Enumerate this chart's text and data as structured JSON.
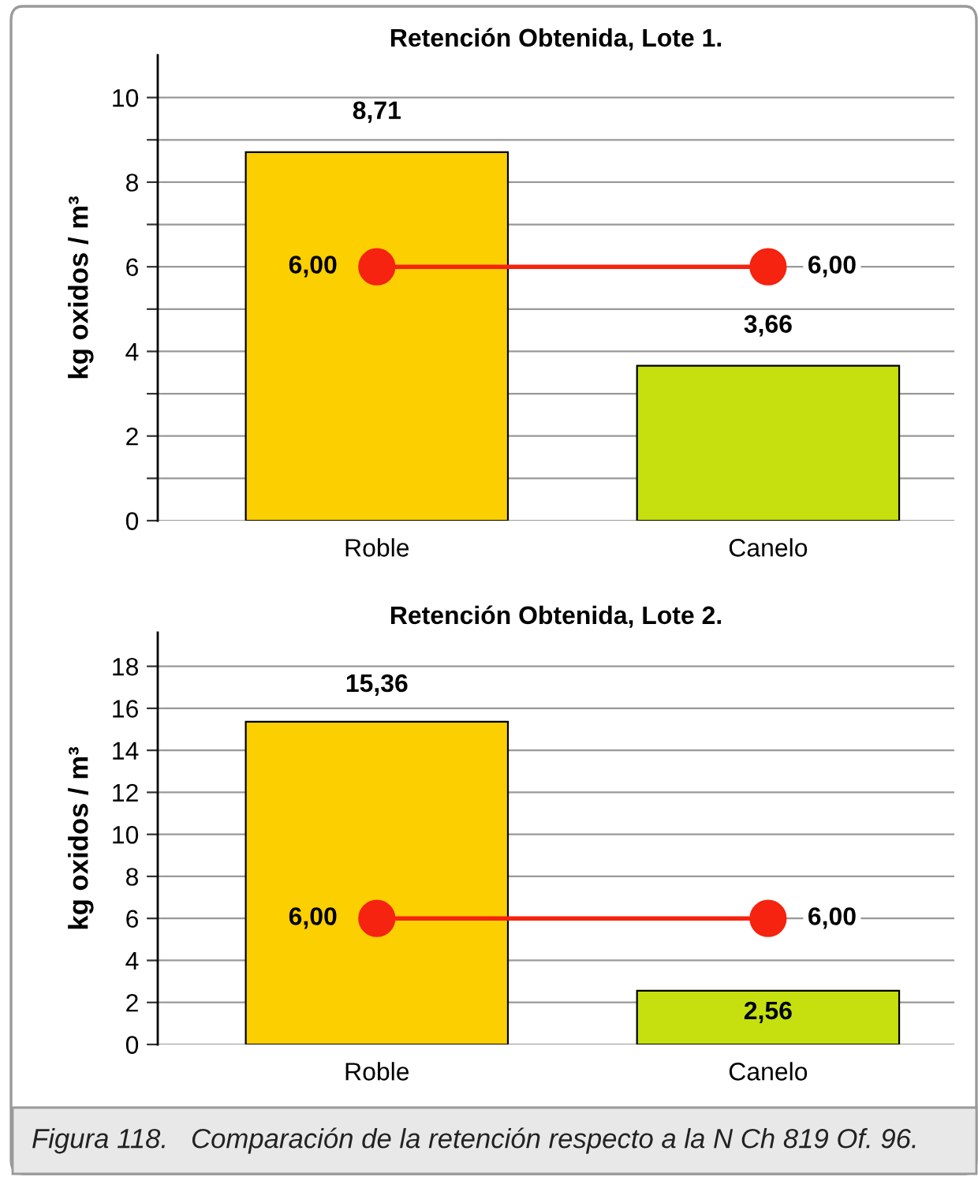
{
  "chart_data": [
    {
      "type": "bar",
      "title": "Retención Obtenida, Lote 1.",
      "ylabel": "kg oxidos / m³",
      "categories": [
        "Roble",
        "Canelo"
      ],
      "series": [
        {
          "colors": [
            "#fccf00",
            "#c5e00e"
          ],
          "values": [
            8.71,
            3.66
          ],
          "value_labels": [
            "8,71",
            "3,66"
          ]
        },
        {
          "type": "line",
          "color": "#f5230f",
          "values": [
            6.0,
            6.0
          ],
          "value_labels": [
            "6,00",
            "6,00"
          ],
          "marker": "circle"
        }
      ],
      "ylim": [
        0,
        11
      ],
      "yticks": [
        0,
        {
          "value": 1,
          "label": null
        },
        2,
        {
          "value": 3,
          "label": null
        },
        4,
        {
          "value": 5,
          "label": null
        },
        6,
        {
          "value": 7,
          "label": null
        },
        8,
        {
          "value": 9,
          "label": null
        },
        10
      ],
      "grid": "y",
      "legend": false
    },
    {
      "type": "bar",
      "title": "Retención Obtenida, Lote 2.",
      "ylabel": "kg oxidos / m³",
      "categories": [
        "Roble",
        "Canelo"
      ],
      "series": [
        {
          "colors": [
            "#fccf00",
            "#c5e00e"
          ],
          "values": [
            15.36,
            2.56
          ],
          "value_labels": [
            "15,36",
            "2,56"
          ]
        },
        {
          "type": "line",
          "color": "#f5230f",
          "values": [
            6.0,
            6.0
          ],
          "value_labels": [
            "6,00",
            "6,00"
          ],
          "marker": "circle"
        }
      ],
      "ylim": [
        0,
        19.6
      ],
      "yticks": [
        0,
        2,
        4,
        6,
        8,
        10,
        12,
        14,
        16,
        18
      ],
      "grid": "y",
      "legend": false,
      "annotations": [
        "Figura 118.   Comparación de la retención respecto a la N Ch 819 Of. 96."
      ]
    }
  ]
}
